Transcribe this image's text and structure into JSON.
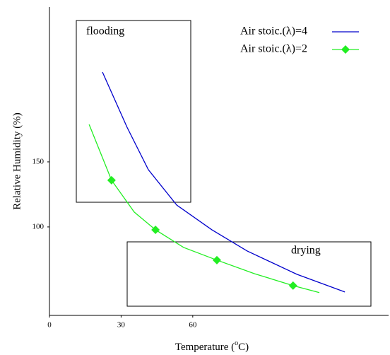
{
  "chart_data": {
    "type": "line",
    "x_label": {
      "before": "Temperature (",
      "sup": "o",
      "after": "C)"
    },
    "y_label": "Relative Humidity (%)",
    "annotations": [
      "flooding",
      "drying"
    ],
    "xlim": [
      0,
      142
    ],
    "xticks": [
      0,
      30,
      60
    ],
    "ylim": [
      32,
      269
    ],
    "yticks": [
      100,
      150
    ],
    "legend": "upper right",
    "series": [
      {
        "name": "Air stoic.(λ)=4",
        "color": "#0000cc",
        "x": [
          22.2,
          32.5,
          41.4,
          53.3,
          68,
          82.8,
          103.6,
          123.7
        ],
        "values": [
          219,
          176.6,
          144,
          116.8,
          97.8,
          81.5,
          63.6,
          50
        ]
      },
      {
        "name": "Air stoic.(λ)=2",
        "color": "#22ee22",
        "x": [
          16.6,
          26,
          35.5,
          44.4,
          56.2,
          70.1,
          85.8,
          102,
          113
        ],
        "values": [
          178.8,
          135.9,
          111.4,
          97.8,
          84.2,
          74.5,
          64.1,
          54.9,
          49.5
        ]
      }
    ]
  }
}
